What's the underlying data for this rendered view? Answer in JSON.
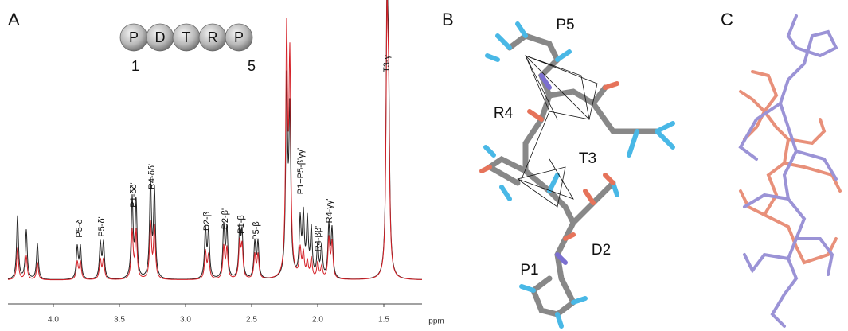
{
  "panels": [
    {
      "label": "A",
      "peptide": {
        "residues": [
          "P",
          "D",
          "T",
          "R",
          "P"
        ],
        "ends": [
          "1",
          "5"
        ]
      },
      "peaks": [
        "P5-δ",
        "P5-δ'",
        "P1-δδ'",
        "R4-δδ'",
        "D2-β",
        "D2-β'",
        "P1-β",
        "P5-β",
        "P1+P5-β'γγ'",
        "R4-ββ'",
        "R4-γγ'",
        "T3-γ"
      ],
      "xaxis": {
        "ticks": [
          {
            "value": 4,
            "label": "4.0"
          },
          3.5,
          {
            "value": 3,
            "label": "3.0"
          },
          2.5,
          {
            "value": 2,
            "label": "2.0"
          },
          1.5
        ],
        "label": "ppm"
      }
    },
    {
      "label": "B",
      "residues": [
        "P5",
        "R4",
        "T3",
        "D2",
        "P1"
      ]
    },
    {
      "label": "C"
    }
  ]
}
